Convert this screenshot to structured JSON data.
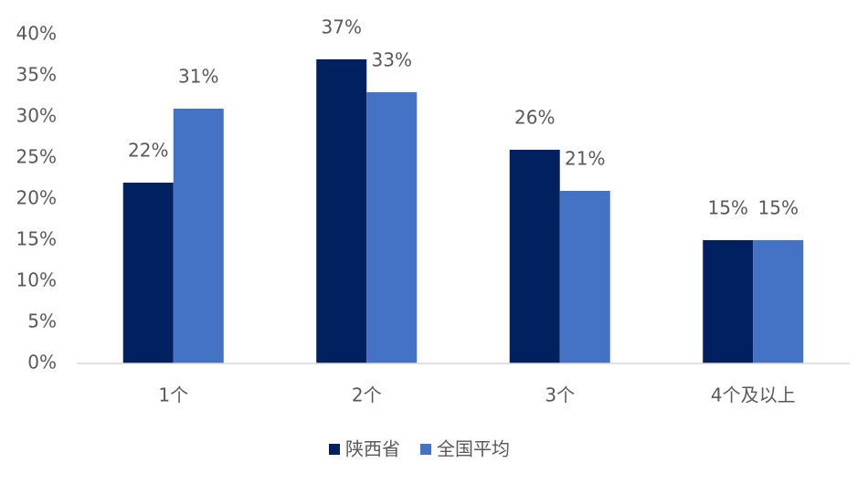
{
  "chart_data": {
    "type": "bar",
    "categories": [
      "1个",
      "2个",
      "3个",
      "4个及以上"
    ],
    "series": [
      {
        "name": "陕西省",
        "color": "#002060",
        "values": [
          22,
          37,
          26,
          15
        ],
        "value_labels": [
          "22%",
          "37%",
          "26%",
          "15%"
        ]
      },
      {
        "name": "全国平均",
        "color": "#4472c4",
        "values": [
          31,
          33,
          21,
          15
        ],
        "value_labels": [
          "31%",
          "33%",
          "21%",
          "15%"
        ]
      }
    ],
    "ylim": [
      0,
      40
    ],
    "yticks": [
      {
        "value": 0,
        "label": "0%"
      },
      {
        "value": 5,
        "label": "5%"
      },
      {
        "value": 10,
        "label": "10%"
      },
      {
        "value": 15,
        "label": "15%"
      },
      {
        "value": 20,
        "label": "20%"
      },
      {
        "value": 25,
        "label": "25%"
      },
      {
        "value": 30,
        "label": "30%"
      },
      {
        "value": 35,
        "label": "35%"
      },
      {
        "value": 40,
        "label": "40%"
      }
    ],
    "grid": false,
    "legend": "bottom"
  }
}
